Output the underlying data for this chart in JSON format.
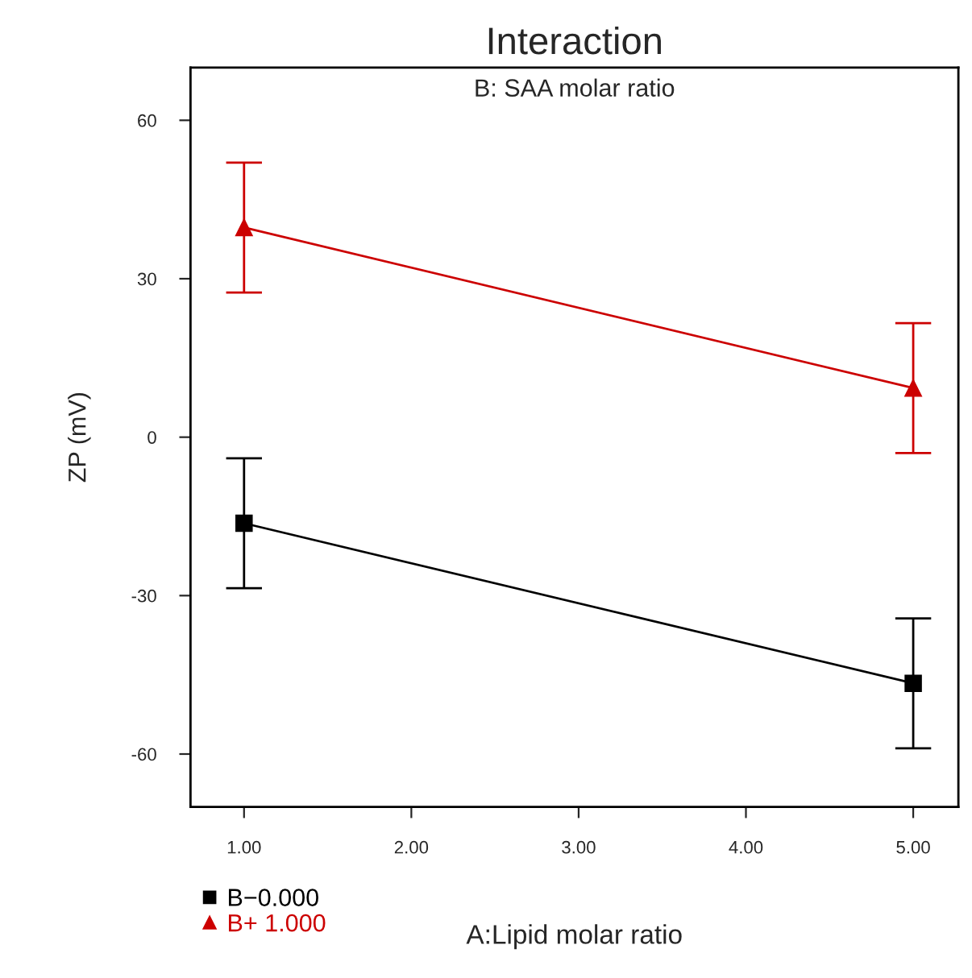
{
  "chart_data": {
    "type": "line",
    "title": "Interaction",
    "subtitle": "B: SAA molar ratio",
    "xlabel": "A:Lipid molar ratio",
    "ylabel": "ZP (mV)",
    "x": [
      1,
      5
    ],
    "series": [
      {
        "name": "B−0.000",
        "color": "#000000",
        "marker": "square",
        "values": [
          -16.3,
          -46.6
        ],
        "errors": [
          12.3,
          12.3
        ]
      },
      {
        "name": "B+ 1.000",
        "color": "#cc0000",
        "marker": "triangle",
        "values": [
          39.7,
          9.3
        ],
        "errors": [
          12.3,
          12.3
        ]
      }
    ],
    "xlim": [
      0.68,
      5.27
    ],
    "ylim": [
      -70,
      70
    ],
    "xticks": [
      {
        "value": 1,
        "label": "1.00"
      },
      {
        "value": 2,
        "label": "2.00"
      },
      {
        "value": 3,
        "label": "3.00"
      },
      {
        "value": 4,
        "label": "4.00"
      },
      {
        "value": 5,
        "label": "5.00"
      }
    ],
    "yticks": [
      -60,
      -30,
      0,
      30,
      60
    ],
    "grid": false,
    "legend": "bottom left"
  }
}
